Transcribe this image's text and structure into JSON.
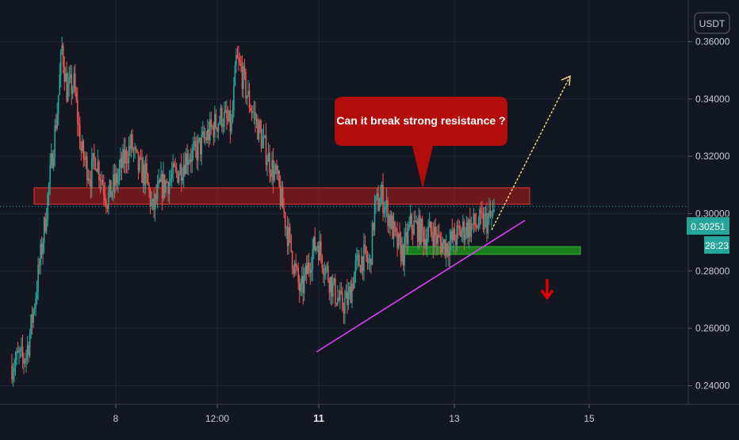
{
  "chart_data": {
    "type": "candlestick",
    "currency_label": "USDT",
    "y_ticks": [
      "0.36000",
      "0.34000",
      "0.32000",
      "0.30000",
      "0.28000",
      "0.26000",
      "0.24000"
    ],
    "x_ticks": [
      {
        "label": "8",
        "bold": false
      },
      {
        "label": "12:00",
        "bold": false
      },
      {
        "label": "11",
        "bold": true
      },
      {
        "label": "13",
        "bold": false
      },
      {
        "label": "15",
        "bold": false
      }
    ],
    "last_price": "0.30251",
    "countdown": "28:23",
    "ylim": [
      0.2335,
      0.3745
    ],
    "annotation_text": "Can it break strong resistance ?",
    "resistance_zone": [
      0.3033,
      0.309
    ],
    "support_zone": [
      0.2858,
      0.2885
    ],
    "colors": {
      "background": "#131722",
      "up": "#26a69a",
      "down": "#ef5350",
      "resistance": "#b71c1c",
      "support": "#1b8f1b",
      "trendline": "#e040fb",
      "projection": "#ffe082",
      "callout": "#b30c0c",
      "price_tag": "#26a69a",
      "down_arrow": "#e00000"
    },
    "icons": [
      "dotted-projection-arrow",
      "red-down-arrow"
    ]
  }
}
